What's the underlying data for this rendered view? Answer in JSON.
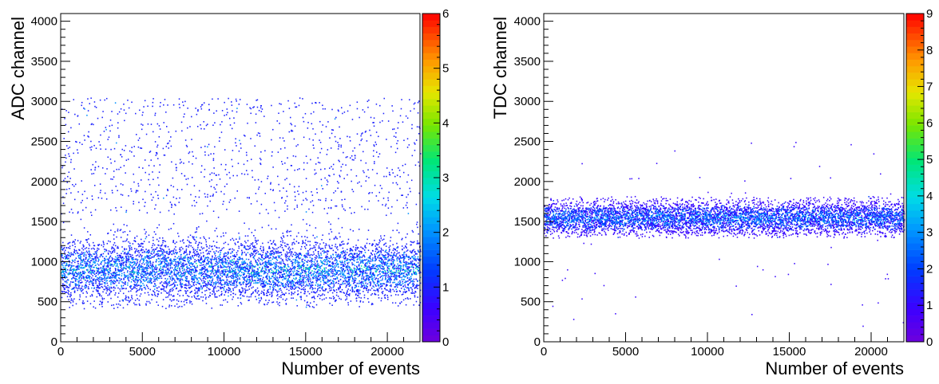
{
  "chart_data": [
    {
      "type": "heatmap",
      "xlabel": "Number of events",
      "ylabel": "ADC channel",
      "xlim": [
        0,
        22000
      ],
      "ylim": [
        0,
        4096
      ],
      "x_ticks": [
        0,
        5000,
        10000,
        15000,
        20000
      ],
      "y_ticks": [
        0,
        500,
        1000,
        1500,
        2000,
        2500,
        3000,
        3500,
        4000
      ],
      "z_range": [
        0,
        6
      ],
      "z_ticks": [
        0,
        1,
        2,
        3,
        4,
        5,
        6
      ],
      "colormap": "ROOT kBird/rainbow (violet-blue-cyan-green-yellow-orange-red)",
      "distribution": {
        "description_core_center": 900,
        "core_spread": 200,
        "core_range": [
          550,
          1600
        ],
        "sparse_tail_range": [
          1600,
          3050
        ],
        "max_count": 6
      }
    },
    {
      "type": "heatmap",
      "xlabel": "Number of events",
      "ylabel": "TDC channel",
      "xlim": [
        0,
        22000
      ],
      "ylim": [
        0,
        4096
      ],
      "x_ticks": [
        0,
        5000,
        10000,
        15000,
        20000
      ],
      "y_ticks": [
        0,
        500,
        1000,
        1500,
        2000,
        2500,
        3000,
        3500,
        4000
      ],
      "z_range": [
        0,
        9
      ],
      "z_ticks": [
        0,
        1,
        2,
        3,
        4,
        5,
        6,
        7,
        8,
        9
      ],
      "colormap": "ROOT kBird/rainbow (violet-blue-cyan-green-yellow-orange-red)",
      "distribution": {
        "description_core_center": 1550,
        "core_spread": 110,
        "core_range": [
          1300,
          1820
        ],
        "sparse_outliers_range": [
          200,
          2550
        ],
        "max_count": 9
      }
    }
  ]
}
